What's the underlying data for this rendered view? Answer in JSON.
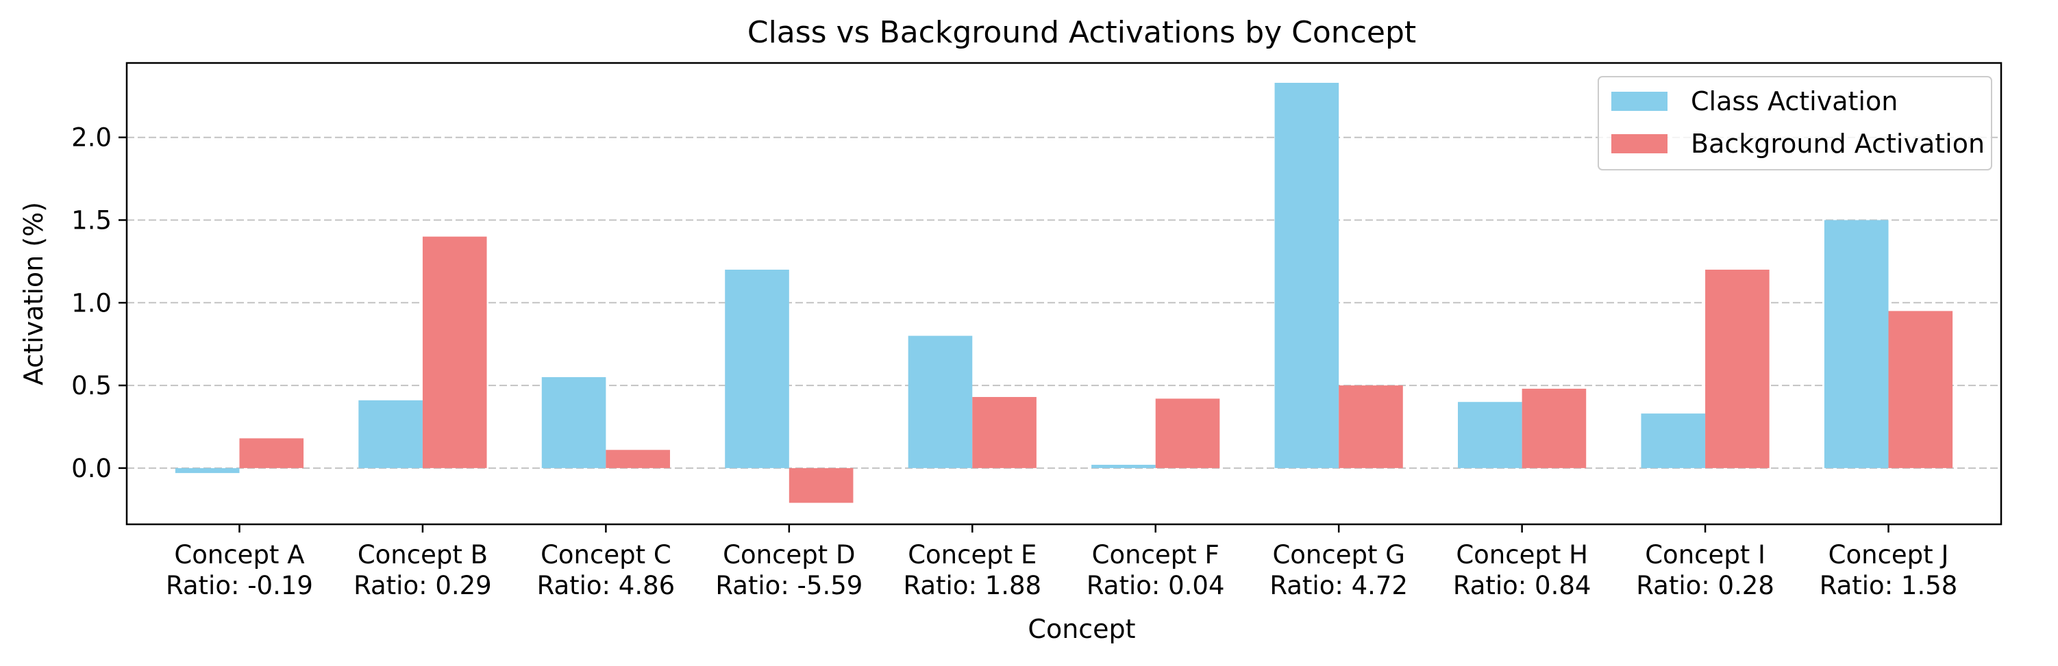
{
  "chart_data": {
    "type": "bar",
    "title": "Class vs Background Activations by Concept",
    "xlabel": "Concept",
    "ylabel": "Activation (%)",
    "categories": [
      "Concept A",
      "Concept B",
      "Concept C",
      "Concept D",
      "Concept E",
      "Concept F",
      "Concept G",
      "Concept H",
      "Concept I",
      "Concept J"
    ],
    "ratio_labels": [
      "Ratio: -0.19",
      "Ratio: 0.29",
      "Ratio: 4.86",
      "Ratio: -5.59",
      "Ratio: 1.88",
      "Ratio: 0.04",
      "Ratio: 4.72",
      "Ratio: 0.84",
      "Ratio: 0.28",
      "Ratio: 1.58"
    ],
    "series": [
      {
        "name": "Class Activation",
        "color": "#87ceeb",
        "values": [
          -0.03,
          0.41,
          0.55,
          1.2,
          0.8,
          0.02,
          2.33,
          0.4,
          0.33,
          1.5
        ]
      },
      {
        "name": "Background Activation",
        "color": "#f08080",
        "values": [
          0.18,
          1.4,
          0.11,
          -0.21,
          0.43,
          0.42,
          0.5,
          0.48,
          1.2,
          0.95
        ]
      }
    ],
    "ylim": [
      -0.34,
      2.45
    ],
    "yticks": [
      0.0,
      0.5,
      1.0,
      1.5,
      2.0
    ],
    "ytick_labels": [
      "0.0",
      "0.5",
      "1.0",
      "1.5",
      "2.0"
    ],
    "grid": "y-dashed",
    "legend": "top-right"
  }
}
